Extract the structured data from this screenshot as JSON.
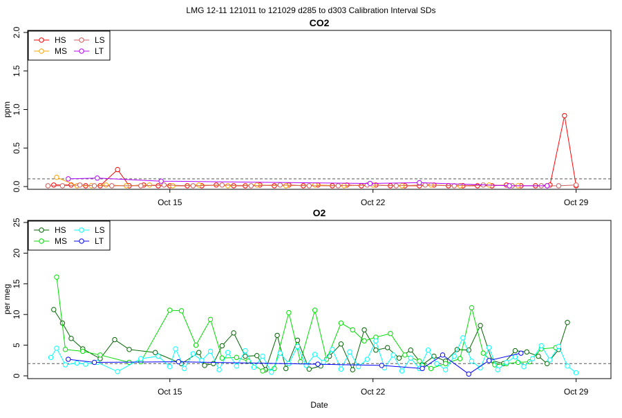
{
  "figure_title": "LMG   12-11    121011 to 121029    d285 to d303   Calibration Interval SDs",
  "chart_data": [
    {
      "type": "line",
      "title": "CO2",
      "xlabel": "",
      "ylabel": "ppm",
      "ylim": [
        0,
        2
      ],
      "yticks": [
        "0.0",
        "0.5",
        "1.0",
        "1.5",
        "2.0"
      ],
      "xticks": [
        "Oct 15",
        "Oct 22",
        "Oct 29"
      ],
      "xlim_days": [
        10.1,
        30.2
      ],
      "reference_line": 0.1,
      "legend_position": "top-left",
      "legend": [
        "HS",
        "MS",
        "LS",
        "LT"
      ],
      "series": [
        {
          "name": "HS",
          "color": "#ff0000",
          "x": [
            11.0,
            11.6,
            12.1,
            12.6,
            13.2,
            13.6,
            14.1,
            14.6,
            15.0,
            15.6,
            16.1,
            16.6,
            17.2,
            17.6,
            18.1,
            18.6,
            19.1,
            19.6,
            20.1,
            20.6,
            21.1,
            21.6,
            22.1,
            22.6,
            23.1,
            23.6,
            24.1,
            24.6,
            25.1,
            25.6,
            26.1,
            26.6,
            27.1,
            27.6,
            28.1,
            28.6,
            29.0
          ],
          "y": [
            0.02,
            0.02,
            0.01,
            0.01,
            0.22,
            0.01,
            0.02,
            0.01,
            0.01,
            0.01,
            0.01,
            0.02,
            0.01,
            0.01,
            0.02,
            0.01,
            0.02,
            0.01,
            0.02,
            0.01,
            0.02,
            0.01,
            0.02,
            0.01,
            0.01,
            0.01,
            0.02,
            0.01,
            0.01,
            0.01,
            0.01,
            0.02,
            0.01,
            0.01,
            0.02,
            0.92,
            0.01
          ]
        },
        {
          "name": "MS",
          "color": "#ffa500",
          "x": [
            11.1,
            11.8,
            12.3,
            12.8,
            13.5,
            14.3,
            15.1,
            16.0,
            17.0,
            18.0,
            19.0,
            20.0,
            21.0,
            22.0,
            23.0,
            24.0,
            25.0,
            26.0,
            27.0,
            28.0
          ],
          "y": [
            0.12,
            0.01,
            0.01,
            0.02,
            0.01,
            0.02,
            0.01,
            0.02,
            0.01,
            0.02,
            0.01,
            0.02,
            0.01,
            0.02,
            0.01,
            0.02,
            0.01,
            0.02,
            0.01,
            0.01
          ]
        },
        {
          "name": "LS",
          "color": "#cd5c5c",
          "x": [
            10.8,
            11.3,
            11.9,
            12.4,
            13.0,
            14.0,
            14.8,
            15.8,
            16.8,
            17.8,
            18.8,
            19.8,
            20.8,
            21.8,
            22.8,
            23.8,
            24.8,
            25.8,
            26.8,
            27.8,
            28.4,
            29.0
          ],
          "y": [
            0.01,
            0.01,
            0.02,
            0.01,
            0.01,
            0.01,
            0.02,
            0.01,
            0.02,
            0.01,
            0.02,
            0.01,
            0.01,
            0.02,
            0.01,
            0.02,
            0.01,
            0.02,
            0.01,
            0.01,
            0.01,
            0.02
          ]
        },
        {
          "name": "LT",
          "color": "#b000ff",
          "x": [
            11.5,
            12.5,
            14.7,
            21.9,
            23.6,
            26.7,
            28.0
          ],
          "y": [
            0.1,
            0.11,
            0.07,
            0.04,
            0.05,
            0.01,
            0.01
          ]
        }
      ]
    },
    {
      "type": "line",
      "title": "O2",
      "xlabel": "Date",
      "ylabel": "per meg",
      "ylim": [
        0,
        25
      ],
      "yticks": [
        "0",
        "5",
        "10",
        "15",
        "20",
        "25"
      ],
      "xticks": [
        "Oct 15",
        "Oct 22",
        "Oct 29"
      ],
      "xlim_days": [
        10.1,
        30.2
      ],
      "reference_line": 2,
      "legend_position": "top-left",
      "legend": [
        "HS",
        "MS",
        "LS",
        "LT"
      ],
      "series": [
        {
          "name": "HS",
          "color": "#006400",
          "x": [
            11.0,
            11.3,
            11.6,
            12.0,
            12.6,
            13.1,
            13.6,
            14.5,
            15.4,
            16.0,
            16.2,
            16.5,
            16.8,
            17.2,
            17.6,
            18.0,
            18.3,
            18.7,
            19.0,
            19.4,
            19.8,
            20.2,
            20.5,
            20.9,
            21.3,
            21.7,
            22.1,
            22.5,
            22.9,
            23.3,
            23.7,
            24.1,
            24.5,
            24.9,
            25.3,
            25.7,
            26.1,
            26.5,
            26.9,
            27.3,
            27.7,
            28.0,
            28.4,
            28.7
          ],
          "y": [
            10.8,
            8.6,
            6.1,
            4.4,
            2.8,
            5.9,
            4.3,
            3.8,
            2.0,
            3.8,
            1.7,
            2.0,
            4.9,
            7.0,
            3.2,
            3.3,
            1.0,
            6.6,
            1.2,
            5.8,
            1.1,
            1.6,
            3.2,
            5.2,
            1.0,
            7.5,
            4.2,
            4.6,
            2.9,
            4.2,
            1.8,
            3.2,
            2.4,
            4.3,
            4.2,
            8.2,
            2.5,
            2.0,
            4.1,
            3.9,
            3.2,
            2.0,
            4.3,
            8.7
          ]
        },
        {
          "name": "MS",
          "color": "#00dd00",
          "x": [
            11.1,
            11.4,
            12.0,
            12.6,
            13.6,
            14.0,
            15.0,
            15.4,
            15.9,
            16.4,
            16.8,
            17.3,
            17.7,
            18.2,
            18.6,
            19.1,
            19.5,
            20.0,
            20.4,
            20.9,
            21.3,
            21.7,
            22.1,
            22.6,
            23.1,
            23.6,
            24.0,
            24.5,
            25.0,
            25.4,
            25.8,
            26.2,
            26.6,
            27.0,
            27.4,
            27.8,
            28.3
          ],
          "y": [
            16.1,
            4.3,
            4.0,
            3.4,
            2.2,
            2.3,
            10.7,
            10.6,
            5.0,
            9.2,
            2.9,
            3.0,
            2.4,
            0.8,
            1.2,
            10.3,
            2.3,
            10.7,
            2.7,
            8.6,
            7.5,
            5.7,
            6.3,
            6.9,
            3.4,
            2.4,
            1.2,
            2.0,
            2.8,
            11.1,
            3.7,
            1.8,
            2.0,
            2.2,
            2.3,
            4.4,
            4.6
          ]
        },
        {
          "name": "LS",
          "color": "#00ffff",
          "x": [
            10.9,
            11.1,
            11.4,
            11.8,
            12.1,
            12.5,
            13.2,
            14.0,
            14.6,
            15.0,
            15.2,
            15.5,
            15.8,
            16.1,
            16.4,
            16.7,
            17.0,
            17.3,
            17.6,
            17.9,
            18.2,
            18.5,
            18.8,
            19.1,
            19.4,
            19.7,
            20.0,
            20.3,
            20.6,
            20.9,
            21.2,
            21.5,
            21.8,
            22.1,
            22.4,
            22.7,
            23.0,
            23.3,
            23.6,
            23.9,
            24.2,
            24.5,
            24.8,
            25.1,
            25.4,
            25.7,
            26.0,
            26.3,
            26.6,
            26.9,
            27.2,
            27.5,
            27.8,
            28.1,
            28.4,
            28.7,
            29.0
          ],
          "y": [
            3.0,
            4.5,
            1.8,
            2.1,
            1.9,
            2.2,
            0.7,
            2.8,
            3.2,
            1.5,
            4.4,
            1.2,
            3.6,
            2.5,
            4.0,
            1.0,
            3.8,
            1.6,
            4.1,
            1.4,
            3.2,
            0.6,
            3.7,
            2.0,
            4.8,
            1.7,
            3.5,
            2.2,
            4.3,
            1.1,
            3.9,
            1.5,
            2.7,
            5.7,
            1.3,
            3.4,
            0.8,
            2.9,
            1.2,
            4.2,
            2.0,
            1.0,
            3.2,
            6.2,
            2.4,
            1.3,
            4.6,
            1.0,
            2.2,
            3.1,
            1.5,
            2.8,
            4.9,
            2.6,
            4.8,
            1.6,
            0.5
          ]
        },
        {
          "name": "LT",
          "color": "#0000ff",
          "x": [
            11.5,
            12.4,
            15.3,
            20.1,
            22.3,
            23.7,
            24.4,
            25.3,
            26.0,
            27.1
          ],
          "y": [
            2.7,
            2.2,
            2.3,
            1.9,
            1.7,
            1.2,
            3.4,
            0.3,
            2.5,
            3.7
          ]
        }
      ]
    }
  ]
}
